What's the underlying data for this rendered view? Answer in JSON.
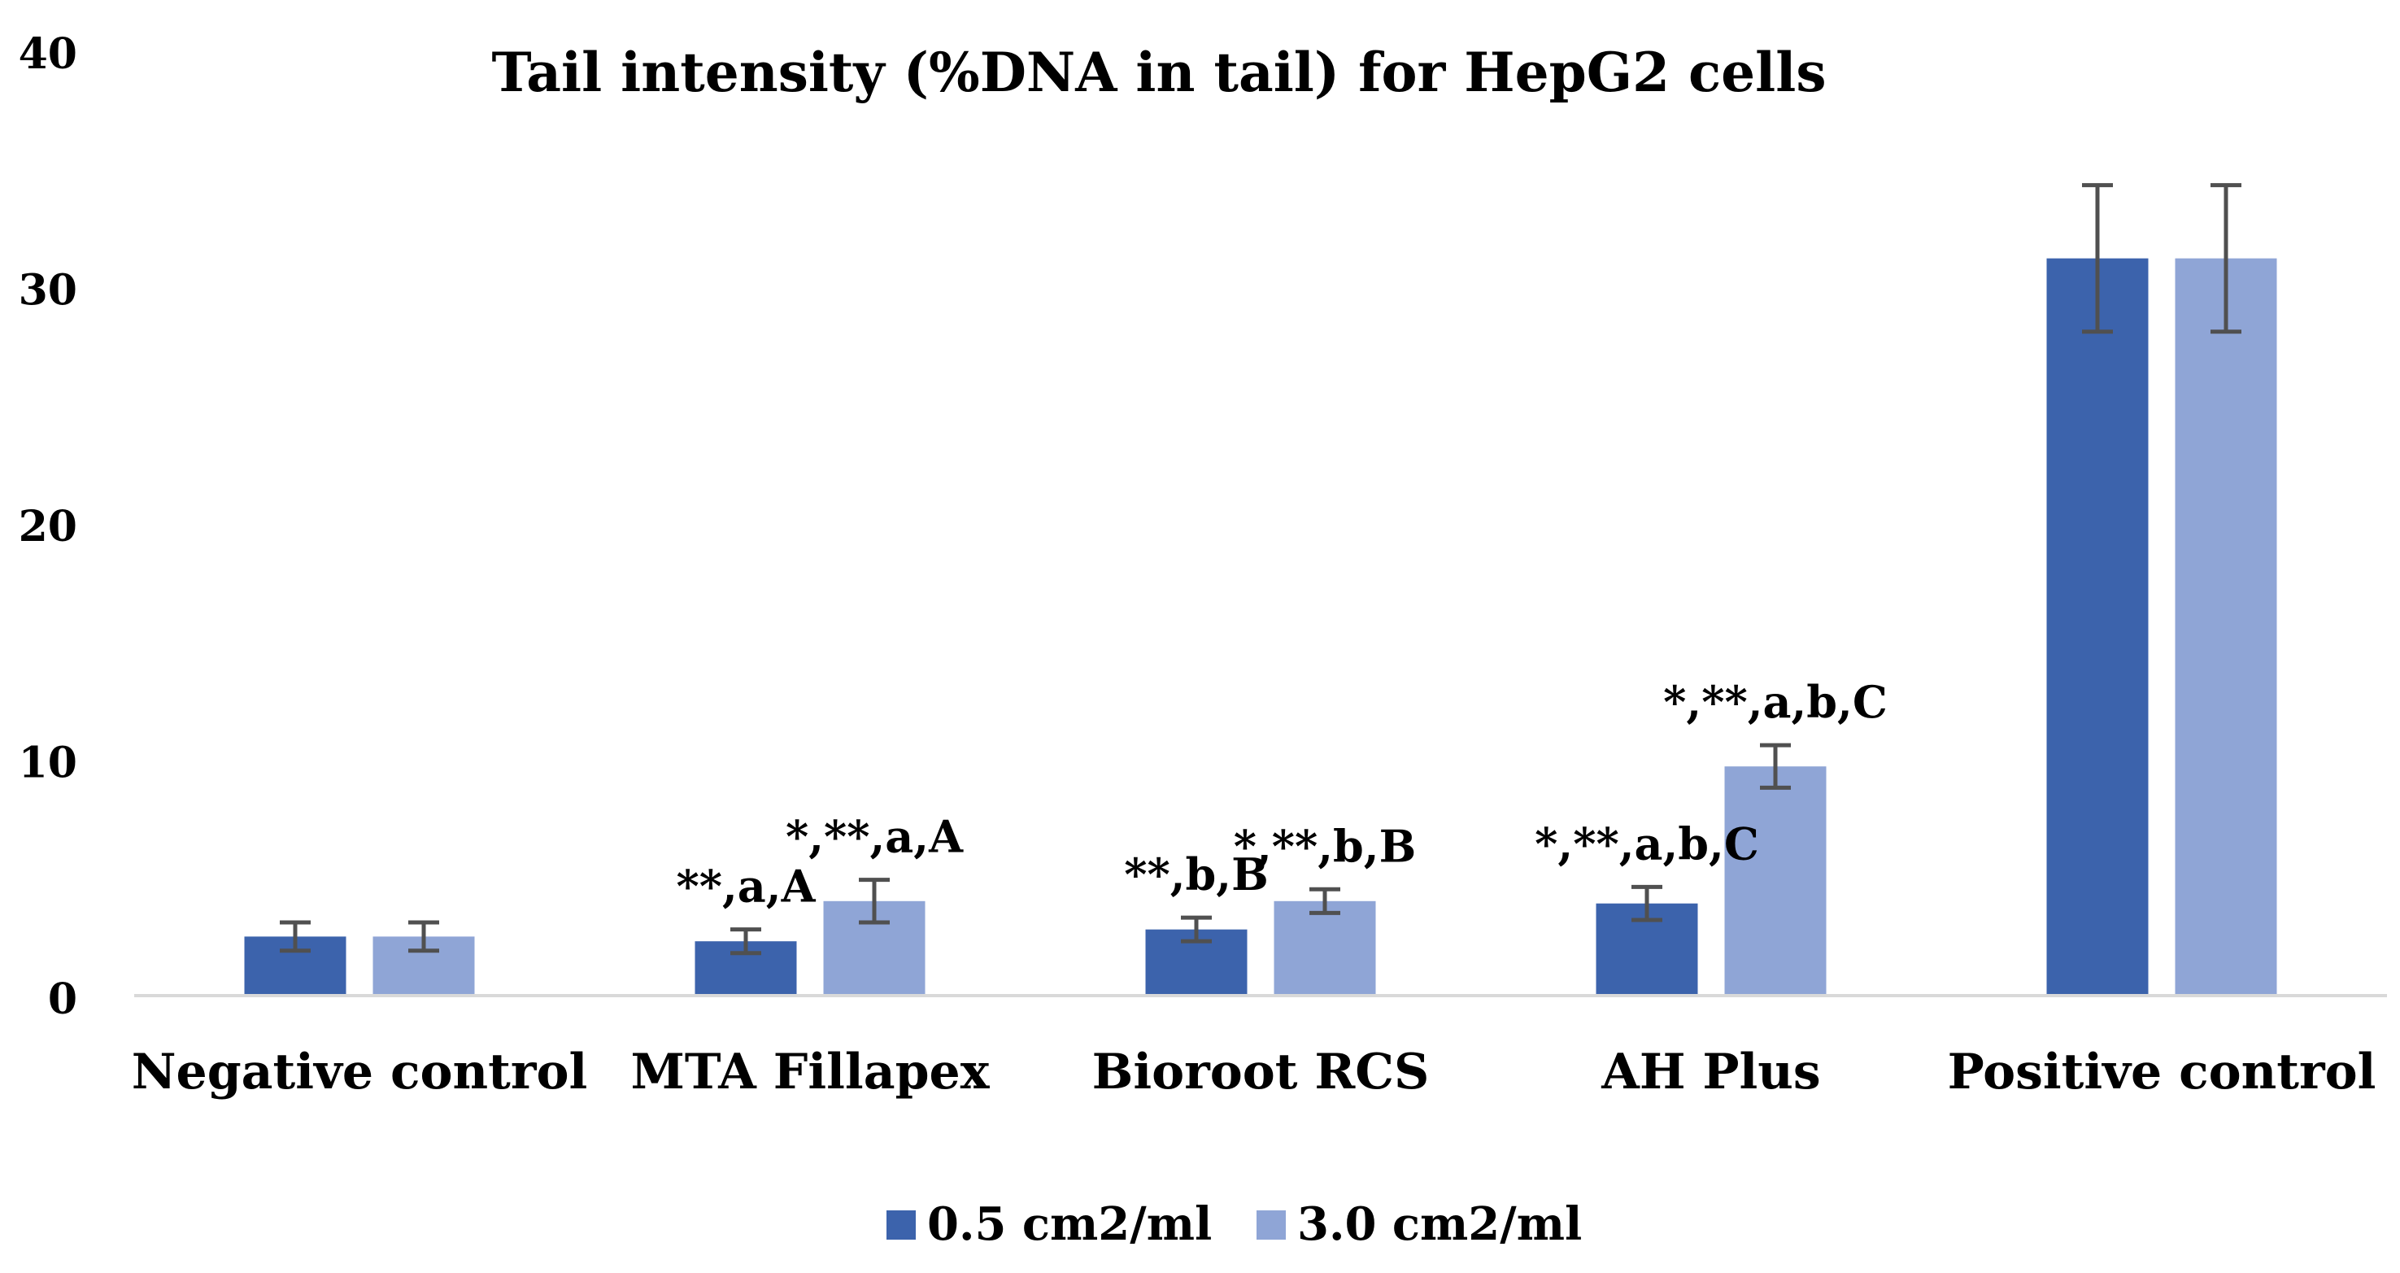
{
  "chart_data": {
    "type": "bar",
    "title": "Tail intensity (%DNA in tail) for HepG2 cells",
    "xlabel": "",
    "ylabel": "",
    "ylim": [
      0,
      40
    ],
    "yticks": [
      0,
      10,
      20,
      30,
      40
    ],
    "grid": false,
    "legend_position": "bottom",
    "categories": [
      "Negative control",
      "MTA Fillapex",
      "Bioroot RCS",
      "AH Plus",
      "Positive control"
    ],
    "series": [
      {
        "name": "0.5 cm2/ml",
        "color": "#3C63AC",
        "values": [
          2.5,
          2.3,
          2.8,
          3.9,
          31.2
        ],
        "errors": [
          0.6,
          0.5,
          0.5,
          0.7,
          3.1
        ],
        "annotations": [
          "",
          "**,a,A",
          "**,b,B",
          "*,**,a,b,C",
          ""
        ]
      },
      {
        "name": "3.0 cm2/ml",
        "color": "#8FA5D6",
        "values": [
          2.5,
          4.0,
          4.0,
          9.7,
          31.2
        ],
        "errors": [
          0.6,
          0.9,
          0.5,
          0.9,
          3.1
        ],
        "annotations": [
          "",
          "*,**,a,A",
          "*,**,b,B",
          "*,**,a,b,C",
          ""
        ]
      }
    ],
    "error_bar_color": "#505050",
    "axis_color": "#D9D9D9"
  }
}
